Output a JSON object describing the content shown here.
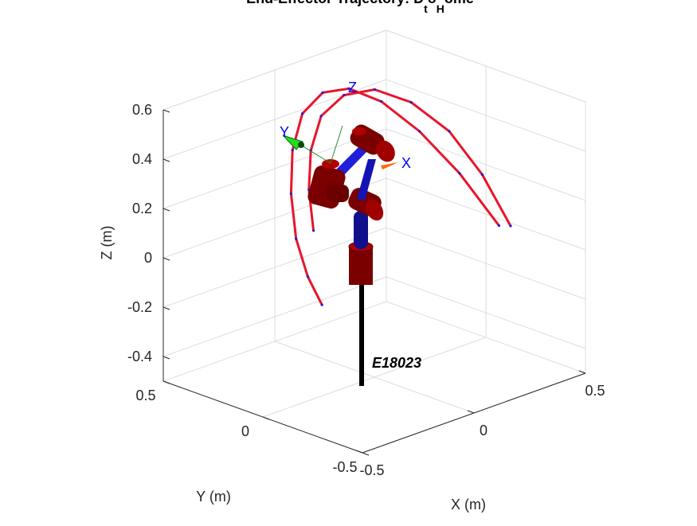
{
  "chart_data": {
    "type": "line",
    "title": "End-Effector Trajectory: D",
    "title_sub_t": "t",
    "title_mid": "o",
    "title_sub_h": "H",
    "title_end": "ome",
    "xlabel": "X (m)",
    "ylabel": "Y (m)",
    "zlabel": "Z (m)",
    "xlim": [
      -0.5,
      0.5
    ],
    "ylim": [
      -0.5,
      0.5
    ],
    "zlim": [
      -0.5,
      0.6
    ],
    "x_ticks": [
      "-0.5",
      "0",
      "0.5"
    ],
    "y_ticks": [
      "-0.5",
      "0",
      "0.5"
    ],
    "z_ticks": [
      "-0.4",
      "-0.2",
      "0",
      "0.2",
      "0.4",
      "0.6"
    ],
    "grid": true,
    "robot_label": "E18023",
    "frame_labels": {
      "x": "X",
      "y": "Y",
      "z": "Z"
    },
    "series": [
      {
        "name": "",
        "x": [
          0.38,
          0.31,
          0.22,
          0.12,
          0.02,
          -0.08,
          -0.18,
          -0.26,
          -0.32,
          -0.36,
          -0.37,
          -0.36
        ],
        "y": [
          -0.2,
          -0.08,
          0.02,
          0.1,
          0.15,
          0.17,
          0.16,
          0.12,
          0.06,
          -0.01,
          -0.08,
          -0.14
        ],
        "z": [
          0.05,
          0.25,
          0.42,
          0.55,
          0.62,
          0.63,
          0.58,
          0.47,
          0.33,
          0.18,
          0.05,
          -0.05
        ]
      },
      {
        "name": "",
        "x": [
          0.45,
          0.43,
          0.38,
          0.29,
          0.18,
          0.06,
          -0.06,
          -0.16,
          -0.24,
          -0.3
        ],
        "y": [
          -0.18,
          -0.06,
          0.05,
          0.14,
          0.2,
          0.22,
          0.2,
          0.14,
          0.06,
          -0.03
        ],
        "z": [
          0.02,
          0.2,
          0.36,
          0.48,
          0.55,
          0.56,
          0.52,
          0.43,
          0.32,
          0.2
        ]
      }
    ],
    "colors": {
      "trajectory": "#e8152a",
      "points": "#1a22d6",
      "robot_red": "#8b0000",
      "robot_blue": "#1010c8",
      "frame_axis_label": "#0000ff",
      "grid": "#dddddd",
      "axis": "#262626",
      "text": "#262626"
    }
  }
}
